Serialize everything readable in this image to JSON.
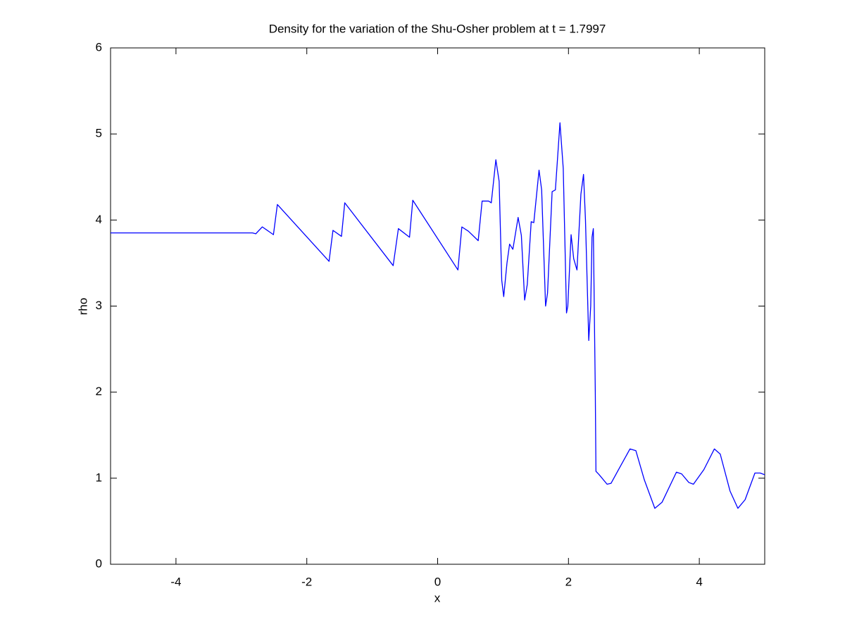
{
  "chart_data": {
    "type": "line",
    "title": "Density for the variation of the Shu-Osher problem at t = 1.7997",
    "x_label": "x",
    "y_label": "rho",
    "xlim": [
      -5,
      5
    ],
    "ylim": [
      0,
      6
    ],
    "xticks": [
      -4,
      -2,
      0,
      2,
      4
    ],
    "yticks": [
      0,
      1,
      2,
      3,
      4,
      5,
      6
    ],
    "x": [
      -5,
      -2.83,
      -2.78,
      -2.68,
      -2.51,
      -2.45,
      -1.66,
      -1.6,
      -1.47,
      -1.42,
      -0.68,
      -0.6,
      -0.43,
      -0.38,
      0.31,
      0.37,
      0.47,
      0.62,
      0.68,
      0.78,
      0.82,
      0.89,
      0.94,
      0.98,
      1.01,
      1.06,
      1.1,
      1.15,
      1.23,
      1.28,
      1.33,
      1.37,
      1.43,
      1.47,
      1.55,
      1.59,
      1.65,
      1.68,
      1.75,
      1.8,
      1.87,
      1.92,
      1.97,
      1.99,
      2.04,
      2.08,
      2.13,
      2.19,
      2.23,
      2.26,
      2.31,
      2.34,
      2.36,
      2.38,
      2.41,
      2.42,
      2.47,
      2.59,
      2.65,
      2.78,
      2.94,
      3.03,
      3.16,
      3.32,
      3.43,
      3.65,
      3.73,
      3.84,
      3.91,
      4.07,
      4.23,
      4.32,
      4.47,
      4.59,
      4.7,
      4.85,
      4.93,
      5
    ],
    "series": [
      {
        "color": "#0000ff",
        "values": [
          3.85,
          3.85,
          3.84,
          3.92,
          3.83,
          4.18,
          3.52,
          3.88,
          3.81,
          4.2,
          3.47,
          3.9,
          3.8,
          4.23,
          3.42,
          3.92,
          3.87,
          3.76,
          4.22,
          4.22,
          4.2,
          4.7,
          4.45,
          3.3,
          3.11,
          3.5,
          3.72,
          3.66,
          4.03,
          3.82,
          3.07,
          3.25,
          3.98,
          3.97,
          4.58,
          4.35,
          3.0,
          3.15,
          4.33,
          4.35,
          5.13,
          4.6,
          2.92,
          3.0,
          3.83,
          3.55,
          3.42,
          4.3,
          4.53,
          4.0,
          2.6,
          3.0,
          3.8,
          3.9,
          2.0,
          1.08,
          1.04,
          0.93,
          0.94,
          1.12,
          1.34,
          1.32,
          0.98,
          0.65,
          0.72,
          1.07,
          1.05,
          0.95,
          0.93,
          1.1,
          1.34,
          1.28,
          0.85,
          0.65,
          0.75,
          1.06,
          1.06,
          1.04
        ]
      }
    ]
  }
}
